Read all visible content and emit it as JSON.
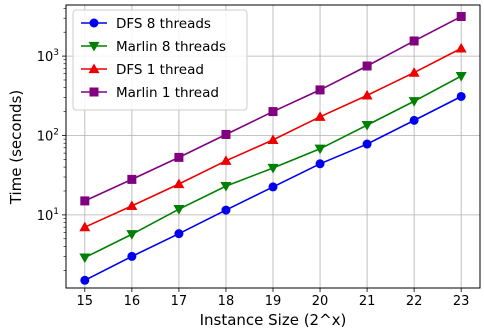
{
  "chart_data": {
    "type": "line",
    "title": "",
    "xlabel": "Instance Size (2^x)",
    "ylabel": "Time (seconds)",
    "yscale": "log",
    "grid": true,
    "legend_position": "top-left",
    "x": [
      15,
      16,
      17,
      18,
      19,
      20,
      21,
      22,
      23
    ],
    "x_tick_labels": [
      "15",
      "16",
      "17",
      "18",
      "19",
      "20",
      "21",
      "22",
      "23"
    ],
    "xlim": [
      14.6,
      23.4
    ],
    "ylim": [
      1.2,
      4400
    ],
    "y_ticks": [
      {
        "value": 10,
        "base": "10",
        "exp": "1"
      },
      {
        "value": 100,
        "base": "10",
        "exp": "2"
      },
      {
        "value": 1000,
        "base": "10",
        "exp": "3"
      }
    ],
    "series": [
      {
        "name": "DFS 8 threads",
        "color": "#0000ee",
        "marker": "circle",
        "values": [
          1.5,
          3.0,
          5.8,
          11.5,
          22.5,
          44,
          78,
          155,
          310
        ]
      },
      {
        "name": "Marlin 8 threads",
        "color": "#008000",
        "marker": "triangle-down",
        "values": [
          2.9,
          5.7,
          11.8,
          23,
          39,
          68,
          135,
          270,
          560
        ]
      },
      {
        "name": "DFS 1 thread",
        "color": "#ee0000",
        "marker": "triangle-up",
        "values": [
          7.0,
          13,
          24.5,
          48,
          88,
          172,
          320,
          620,
          1250
        ]
      },
      {
        "name": "Marlin 1 thread",
        "color": "#800080",
        "marker": "square",
        "values": [
          15,
          28,
          53,
          103,
          200,
          375,
          750,
          1550,
          3150
        ]
      }
    ]
  }
}
